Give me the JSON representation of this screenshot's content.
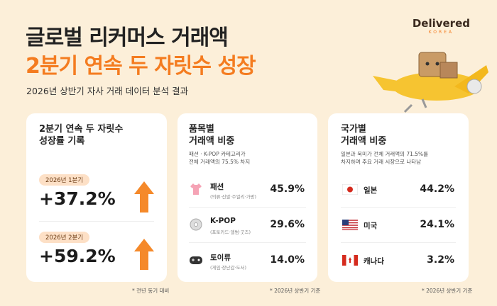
{
  "header": {
    "title": "글로벌 리커머스 거래액",
    "headline": "2분기 연속 두 자릿수 성장",
    "subtitle": "2026년 상반기 자사 거래 데이터 분석 결과",
    "logo": "Delivered",
    "logo_sub": "KOREA"
  },
  "cards": [
    {
      "title": [
        "2분기 연속 두 자릿수",
        "성장률 기록"
      ],
      "items": [
        {
          "period": "2026년 1분기",
          "value": "+37.2%"
        },
        {
          "period": "2026년 2분기",
          "value": "+59.2%"
        }
      ],
      "footnote": "* 전년 동기 대비"
    },
    {
      "title": [
        "품목별",
        "거래액 비중"
      ],
      "description": [
        "패션 · K-POP 카테고리가",
        "전체 거래액의 75.5% 차지"
      ],
      "items": [
        {
          "name": "패션",
          "detail": "(의류·신발·주얼리·가방)",
          "value": "45.9%"
        },
        {
          "name": "K-POP",
          "detail": "(포토카드·앨범·굿즈)",
          "value": "29.6%"
        },
        {
          "name": "토이류",
          "detail": "(게임·장난감·도서)",
          "value": "14.0%"
        }
      ],
      "footnote": "* 2026년 상반기 기준"
    },
    {
      "title": [
        "국가별",
        "거래액 비중"
      ],
      "description": [
        "일본과 북미가 전체 거래액의 71.5%를",
        "차지하며 주요 거래 시장으로 나타남"
      ],
      "items": [
        {
          "name": "일본",
          "value": "44.2%"
        },
        {
          "name": "미국",
          "value": "24.1%"
        },
        {
          "name": "캐나다",
          "value": "3.2%"
        }
      ],
      "footnote": "* 2026년 상반기 기준"
    }
  ]
}
